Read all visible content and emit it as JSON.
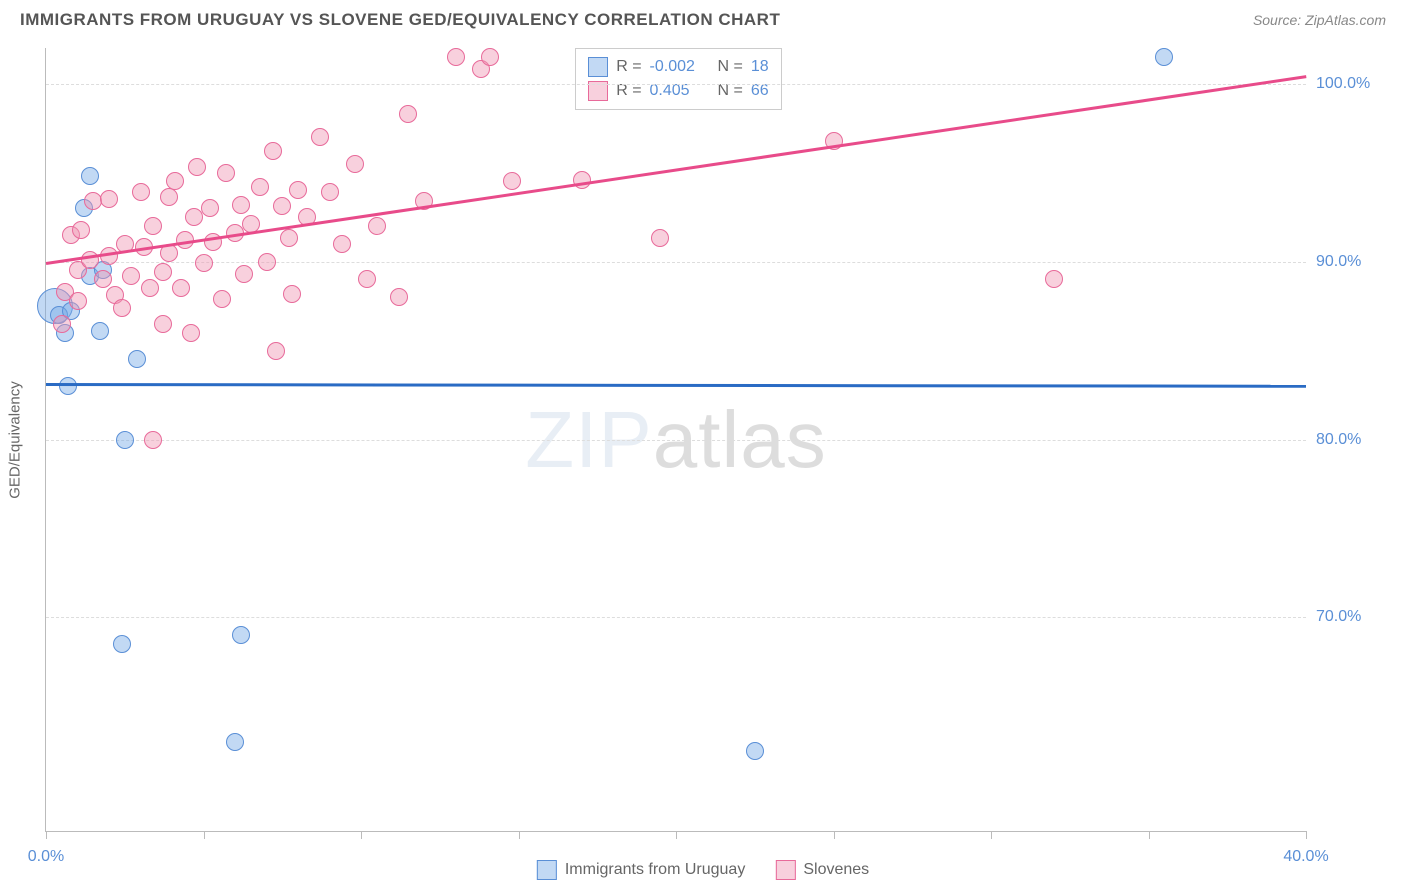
{
  "header": {
    "title": "IMMIGRANTS FROM URUGUAY VS SLOVENE GED/EQUIVALENCY CORRELATION CHART",
    "source": "Source: ZipAtlas.com"
  },
  "watermark": {
    "part1": "ZIP",
    "part2": "atlas"
  },
  "chart": {
    "type": "scatter",
    "y_axis_label": "GED/Equivalency",
    "background_color": "#ffffff",
    "grid_color": "#dddddd",
    "xlim": [
      0,
      40
    ],
    "ylim": [
      58,
      102
    ],
    "y_ticks": [
      {
        "value": 70,
        "label": "70.0%"
      },
      {
        "value": 80,
        "label": "80.0%"
      },
      {
        "value": 90,
        "label": "90.0%"
      },
      {
        "value": 100,
        "label": "100.0%"
      }
    ],
    "x_ticks": [
      0,
      5,
      10,
      15,
      20,
      25,
      30,
      35,
      40
    ],
    "x_tick_labels": [
      {
        "value": 0,
        "label": "0.0%"
      },
      {
        "value": 40,
        "label": "40.0%"
      }
    ],
    "series": [
      {
        "name": "Immigrants from Uruguay",
        "color_fill": "rgba(120,170,230,0.45)",
        "color_stroke": "#5a8fd6",
        "marker_radius": 9,
        "trend": {
          "x1": 0,
          "y1": 83.2,
          "x2": 40,
          "y2": 83.1,
          "color": "#2a6bc4",
          "width": 2.5
        },
        "points": [
          {
            "x": 0.3,
            "y": 87.5,
            "r": 18
          },
          {
            "x": 0.4,
            "y": 87.0
          },
          {
            "x": 0.6,
            "y": 86.0
          },
          {
            "x": 0.7,
            "y": 83.0
          },
          {
            "x": 0.8,
            "y": 87.2
          },
          {
            "x": 1.2,
            "y": 93.0
          },
          {
            "x": 1.4,
            "y": 89.2
          },
          {
            "x": 1.4,
            "y": 94.8
          },
          {
            "x": 1.7,
            "y": 86.1
          },
          {
            "x": 1.8,
            "y": 89.5
          },
          {
            "x": 2.5,
            "y": 80.0
          },
          {
            "x": 2.9,
            "y": 84.5
          },
          {
            "x": 2.4,
            "y": 68.5
          },
          {
            "x": 6.0,
            "y": 63.0
          },
          {
            "x": 6.2,
            "y": 69.0
          },
          {
            "x": 22.5,
            "y": 62.5
          },
          {
            "x": 35.5,
            "y": 101.5
          }
        ]
      },
      {
        "name": "Slovenes",
        "color_fill": "rgba(240,150,180,0.45)",
        "color_stroke": "#e86a9a",
        "marker_radius": 9,
        "trend": {
          "x1": 0,
          "y1": 90.0,
          "x2": 40,
          "y2": 100.5,
          "color": "#e84b8a",
          "width": 2.5
        },
        "points": [
          {
            "x": 0.5,
            "y": 86.5
          },
          {
            "x": 0.6,
            "y": 88.3
          },
          {
            "x": 0.8,
            "y": 91.5
          },
          {
            "x": 1.0,
            "y": 87.8
          },
          {
            "x": 1.0,
            "y": 89.5
          },
          {
            "x": 1.1,
            "y": 91.8
          },
          {
            "x": 1.4,
            "y": 90.1
          },
          {
            "x": 1.5,
            "y": 93.4
          },
          {
            "x": 1.8,
            "y": 89.0
          },
          {
            "x": 2.0,
            "y": 93.5
          },
          {
            "x": 2.0,
            "y": 90.3
          },
          {
            "x": 2.2,
            "y": 88.1
          },
          {
            "x": 2.4,
            "y": 87.4
          },
          {
            "x": 2.5,
            "y": 91.0
          },
          {
            "x": 2.7,
            "y": 89.2
          },
          {
            "x": 3.0,
            "y": 93.9
          },
          {
            "x": 3.1,
            "y": 90.8
          },
          {
            "x": 3.3,
            "y": 88.5
          },
          {
            "x": 3.4,
            "y": 92.0
          },
          {
            "x": 3.7,
            "y": 89.4
          },
          {
            "x": 3.7,
            "y": 86.5
          },
          {
            "x": 3.9,
            "y": 93.6
          },
          {
            "x": 3.9,
            "y": 90.5
          },
          {
            "x": 4.1,
            "y": 94.5
          },
          {
            "x": 4.3,
            "y": 88.5
          },
          {
            "x": 4.4,
            "y": 91.2
          },
          {
            "x": 4.6,
            "y": 86.0
          },
          {
            "x": 4.7,
            "y": 92.5
          },
          {
            "x": 4.8,
            "y": 95.3
          },
          {
            "x": 5.0,
            "y": 89.9
          },
          {
            "x": 5.2,
            "y": 93.0
          },
          {
            "x": 5.3,
            "y": 91.1
          },
          {
            "x": 5.6,
            "y": 87.9
          },
          {
            "x": 5.7,
            "y": 95.0
          },
          {
            "x": 6.0,
            "y": 91.6
          },
          {
            "x": 6.2,
            "y": 93.2
          },
          {
            "x": 6.3,
            "y": 89.3
          },
          {
            "x": 6.5,
            "y": 92.1
          },
          {
            "x": 6.8,
            "y": 94.2
          },
          {
            "x": 7.0,
            "y": 90.0
          },
          {
            "x": 7.2,
            "y": 96.2
          },
          {
            "x": 7.3,
            "y": 85.0
          },
          {
            "x": 7.5,
            "y": 93.1
          },
          {
            "x": 7.7,
            "y": 91.3
          },
          {
            "x": 7.8,
            "y": 88.2
          },
          {
            "x": 8.0,
            "y": 94.0
          },
          {
            "x": 8.3,
            "y": 92.5
          },
          {
            "x": 8.7,
            "y": 97.0
          },
          {
            "x": 9.0,
            "y": 93.9
          },
          {
            "x": 9.4,
            "y": 91.0
          },
          {
            "x": 9.8,
            "y": 95.5
          },
          {
            "x": 10.2,
            "y": 89.0
          },
          {
            "x": 10.5,
            "y": 92.0
          },
          {
            "x": 11.2,
            "y": 88.0
          },
          {
            "x": 11.5,
            "y": 98.3
          },
          {
            "x": 12.0,
            "y": 93.4
          },
          {
            "x": 13.0,
            "y": 101.5
          },
          {
            "x": 13.8,
            "y": 100.8
          },
          {
            "x": 14.1,
            "y": 101.5
          },
          {
            "x": 14.8,
            "y": 94.5
          },
          {
            "x": 17.0,
            "y": 94.6
          },
          {
            "x": 19.5,
            "y": 91.3
          },
          {
            "x": 25.0,
            "y": 96.8
          },
          {
            "x": 3.4,
            "y": 80.0
          },
          {
            "x": 32.0,
            "y": 89.0
          }
        ]
      }
    ],
    "stats_legend": {
      "rows": [
        {
          "swatch_fill": "rgba(120,170,230,0.45)",
          "swatch_stroke": "#5a8fd6",
          "r_label": "R =",
          "r_value": "-0.002",
          "n_label": "N =",
          "n_value": "18"
        },
        {
          "swatch_fill": "rgba(240,150,180,0.45)",
          "swatch_stroke": "#e86a9a",
          "r_label": "R =",
          "r_value": "0.405",
          "n_label": "N =",
          "n_value": "66"
        }
      ]
    },
    "bottom_legend": [
      {
        "swatch_fill": "rgba(120,170,230,0.45)",
        "swatch_stroke": "#5a8fd6",
        "label": "Immigrants from Uruguay"
      },
      {
        "swatch_fill": "rgba(240,150,180,0.45)",
        "swatch_stroke": "#e86a9a",
        "label": "Slovenes"
      }
    ]
  }
}
